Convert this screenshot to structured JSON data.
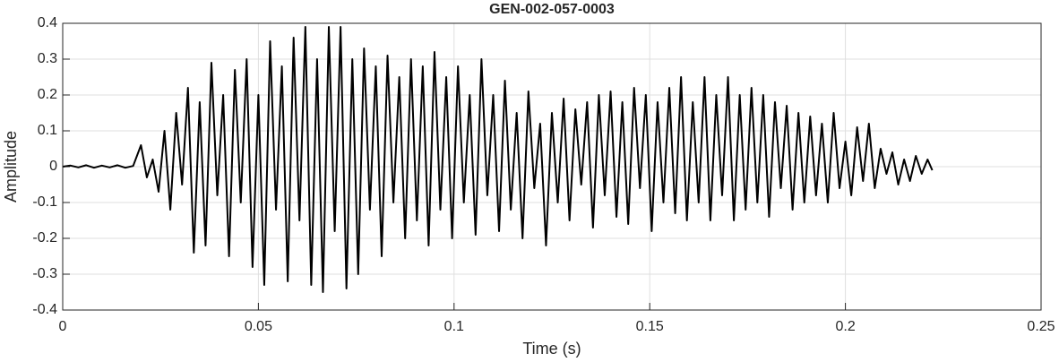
{
  "chart_data": {
    "type": "line",
    "title": "GEN-002-057-0003",
    "xlabel": "Time (s)",
    "ylabel": "Amplitude",
    "x": [
      0,
      0.002,
      0.004,
      0.006,
      0.008,
      0.01,
      0.012,
      0.014,
      0.016,
      0.018,
      0.02,
      0.0215,
      0.023,
      0.0245,
      0.026,
      0.0275,
      0.029,
      0.0305,
      0.032,
      0.0335,
      0.035,
      0.0365,
      0.038,
      0.0395,
      0.041,
      0.0425,
      0.044,
      0.0455,
      0.047,
      0.0485,
      0.05,
      0.0515,
      0.053,
      0.0545,
      0.056,
      0.0575,
      0.059,
      0.0605,
      0.062,
      0.0635,
      0.065,
      0.0665,
      0.068,
      0.0695,
      0.071,
      0.0725,
      0.074,
      0.0755,
      0.077,
      0.0785,
      0.08,
      0.0815,
      0.083,
      0.0845,
      0.086,
      0.0875,
      0.089,
      0.0905,
      0.092,
      0.0935,
      0.095,
      0.0965,
      0.098,
      0.0995,
      0.101,
      0.1025,
      0.104,
      0.1055,
      0.107,
      0.1085,
      0.11,
      0.1115,
      0.113,
      0.1145,
      0.116,
      0.1175,
      0.119,
      0.1205,
      0.122,
      0.1235,
      0.125,
      0.1265,
      0.128,
      0.1295,
      0.131,
      0.1325,
      0.134,
      0.1355,
      0.137,
      0.1385,
      0.14,
      0.1415,
      0.143,
      0.1445,
      0.146,
      0.1475,
      0.149,
      0.1505,
      0.152,
      0.1535,
      0.155,
      0.1565,
      0.158,
      0.1595,
      0.161,
      0.1625,
      0.164,
      0.1655,
      0.167,
      0.1685,
      0.17,
      0.1715,
      0.173,
      0.1745,
      0.176,
      0.1775,
      0.179,
      0.1805,
      0.182,
      0.1835,
      0.185,
      0.1865,
      0.188,
      0.1895,
      0.191,
      0.1925,
      0.194,
      0.1955,
      0.197,
      0.1985,
      0.2,
      0.2015,
      0.203,
      0.2045,
      0.206,
      0.2075,
      0.209,
      0.2105,
      0.212,
      0.2135,
      0.215,
      0.2165,
      0.218,
      0.2195,
      0.221,
      0.2222
    ],
    "series": [
      {
        "color": "#000000",
        "values": [
          0,
          0.003,
          -0.002,
          0.004,
          -0.003,
          0.003,
          -0.002,
          0.004,
          -0.003,
          0.002,
          0.06,
          -0.03,
          0.02,
          -0.07,
          0.1,
          -0.12,
          0.15,
          -0.05,
          0.22,
          -0.24,
          0.18,
          -0.22,
          0.29,
          -0.08,
          0.2,
          -0.25,
          0.27,
          -0.1,
          0.3,
          -0.28,
          0.2,
          -0.33,
          0.35,
          -0.12,
          0.28,
          -0.32,
          0.36,
          -0.15,
          0.39,
          -0.33,
          0.3,
          -0.35,
          0.39,
          -0.18,
          0.39,
          -0.34,
          0.3,
          -0.3,
          0.33,
          -0.12,
          0.28,
          -0.25,
          0.31,
          -0.1,
          0.25,
          -0.2,
          0.3,
          -0.15,
          0.28,
          -0.22,
          0.32,
          -0.12,
          0.25,
          -0.2,
          0.28,
          -0.1,
          0.2,
          -0.19,
          0.3,
          -0.08,
          0.2,
          -0.18,
          0.24,
          -0.12,
          0.15,
          -0.2,
          0.21,
          -0.06,
          0.12,
          -0.22,
          0.15,
          -0.1,
          0.19,
          -0.15,
          0.16,
          -0.05,
          0.18,
          -0.17,
          0.2,
          -0.08,
          0.21,
          -0.14,
          0.18,
          -0.16,
          0.22,
          -0.06,
          0.2,
          -0.18,
          0.18,
          -0.1,
          0.22,
          -0.13,
          0.25,
          -0.15,
          0.18,
          -0.1,
          0.25,
          -0.15,
          0.2,
          -0.08,
          0.25,
          -0.15,
          0.2,
          -0.12,
          0.22,
          -0.1,
          0.2,
          -0.14,
          0.18,
          -0.06,
          0.17,
          -0.12,
          0.15,
          -0.1,
          0.14,
          -0.08,
          0.12,
          -0.1,
          0.15,
          -0.06,
          0.07,
          -0.08,
          0.11,
          -0.04,
          0.12,
          -0.06,
          0.05,
          -0.02,
          0.04,
          -0.05,
          0.02,
          -0.04,
          0.03,
          -0.02,
          0.02,
          -0.01
        ]
      }
    ],
    "xlim": [
      0,
      0.25
    ],
    "xticks": [
      0,
      0.05,
      0.1,
      0.15,
      0.2,
      0.25
    ],
    "ylim": [
      -0.4,
      0.4
    ],
    "yticks": [
      -0.4,
      -0.3,
      -0.2,
      -0.1,
      0,
      0.1,
      0.2,
      0.3,
      0.4
    ],
    "grid": true
  }
}
